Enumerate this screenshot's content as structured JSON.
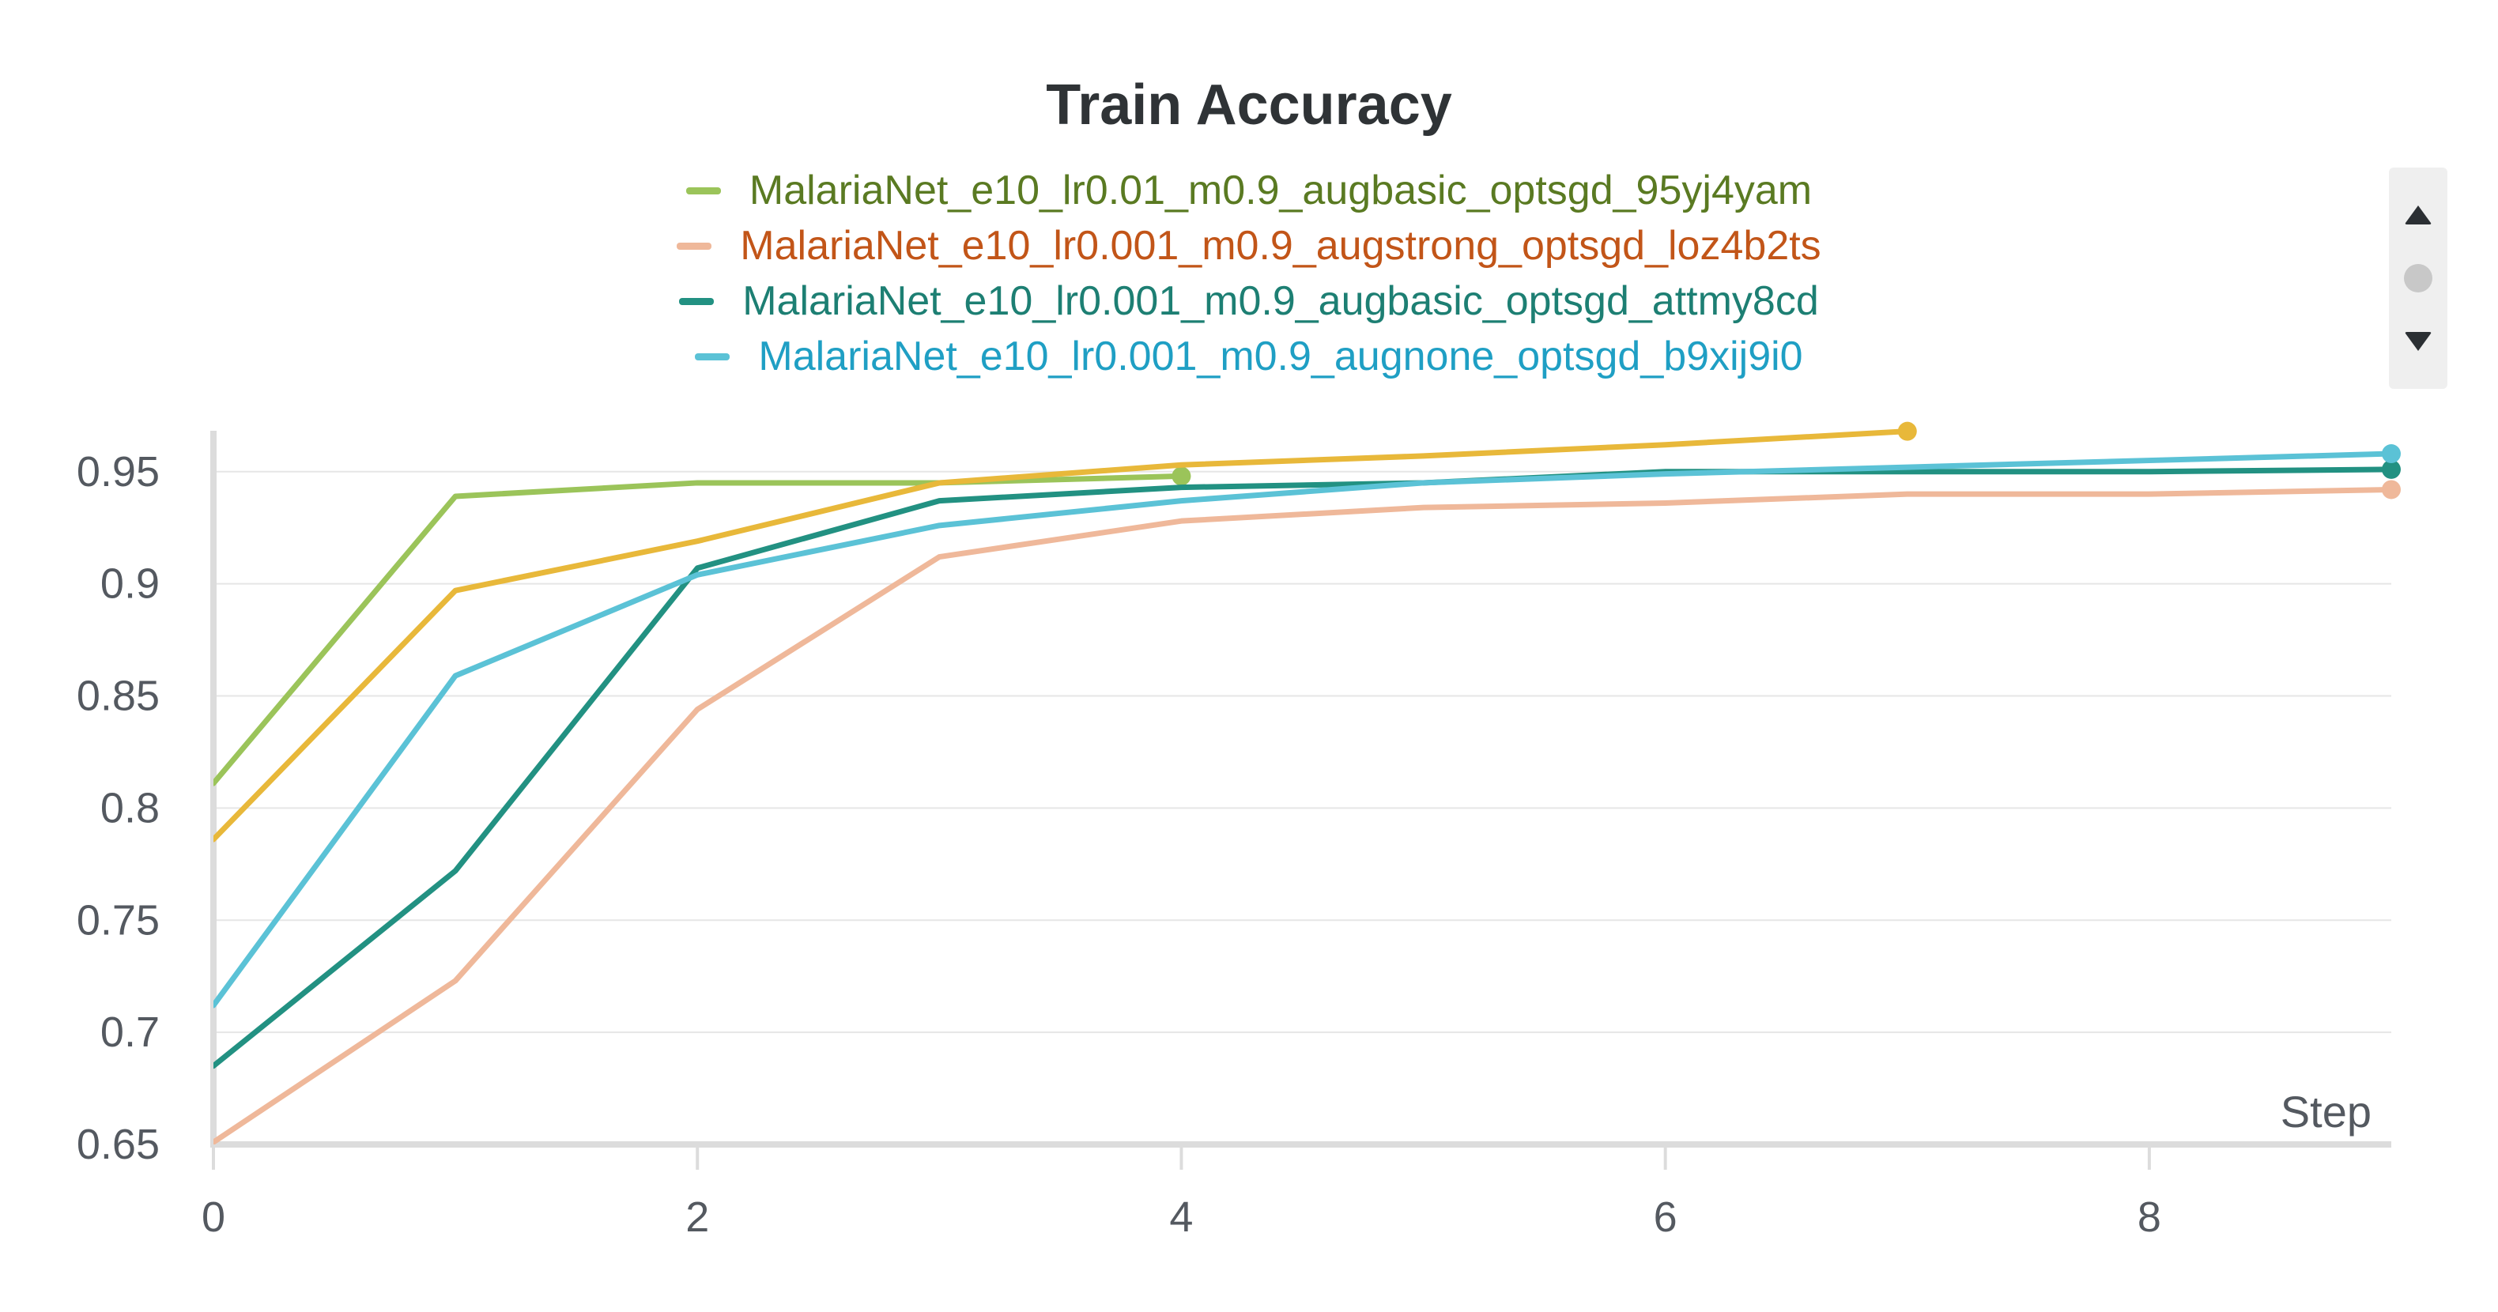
{
  "chart_data": {
    "type": "line",
    "title": "Train Accuracy",
    "xlabel": "Step",
    "ylabel": "",
    "xlim": [
      0,
      9
    ],
    "ylim": [
      0.65,
      0.97
    ],
    "xticks": [
      0,
      2,
      4,
      6,
      8
    ],
    "xtick_labels": [
      "0",
      "2",
      "4",
      "6",
      "8"
    ],
    "yticks": [
      0.65,
      0.7,
      0.75,
      0.8,
      0.85,
      0.9,
      0.95
    ],
    "ytick_labels": [
      "0.65",
      "0.7",
      "0.75",
      "0.8",
      "0.85",
      "0.9",
      "0.95"
    ],
    "grid": "horizontal",
    "legend_position": "top-center",
    "series": [
      {
        "name": "MalariaNet_e10_lr0.01_m0.9_augbasic_optsgd_95yj4yam",
        "color": "#9bc45a",
        "label_color": "#5a7a22",
        "width": 7,
        "in_legend": true,
        "x": [
          0,
          1,
          2,
          3,
          4
        ],
        "y": [
          0.811,
          0.939,
          0.945,
          0.945,
          0.948
        ]
      },
      {
        "name": "",
        "color": "#e8b83a",
        "width": 7,
        "in_legend": false,
        "x": [
          0,
          1,
          2,
          3,
          4,
          5,
          6,
          7
        ],
        "y": [
          0.786,
          0.897,
          0.919,
          0.945,
          0.953,
          0.957,
          0.962,
          0.968
        ]
      },
      {
        "name": "MalariaNet_e10_lr0.001_m0.9_augstrong_optsgd_loz4b2ts",
        "color": "#efb89a",
        "label_color": "#c25518",
        "width": 7,
        "in_legend": true,
        "x": [
          0,
          1,
          2,
          3,
          4,
          5,
          6,
          7,
          8,
          9
        ],
        "y": [
          0.651,
          0.723,
          0.844,
          0.912,
          0.928,
          0.934,
          0.936,
          0.94,
          0.94,
          0.942
        ]
      },
      {
        "name": "MalariaNet_e10_lr0.001_m0.9_augbasic_optsgd_attmy8cd",
        "color": "#229182",
        "label_color": "#1d7f73",
        "width": 7,
        "in_legend": true,
        "x": [
          0,
          1,
          2,
          3,
          4,
          5,
          6,
          7,
          8,
          9
        ],
        "y": [
          0.685,
          0.772,
          0.907,
          0.937,
          0.943,
          0.945,
          0.95,
          0.95,
          0.95,
          0.951
        ]
      },
      {
        "name": "MalariaNet_e10_lr0.001_m0.9_augnone_optsgd_b9xij9i0",
        "color": "#5bc2d6",
        "label_color": "#1f9fc4",
        "width": 7,
        "in_legend": true,
        "x": [
          0,
          1,
          2,
          3,
          4,
          5,
          6,
          7,
          8,
          9
        ],
        "y": [
          0.712,
          0.859,
          0.904,
          0.926,
          0.937,
          0.945,
          0.949,
          0.952,
          0.955,
          0.958
        ]
      }
    ]
  },
  "legend_scroller": {
    "up_icon": "triangle-up-icon",
    "dot_icon": "circle-icon",
    "down_icon": "triangle-down-icon",
    "icon_color": "#2b2f33",
    "dot_color": "#c8c8c8"
  }
}
